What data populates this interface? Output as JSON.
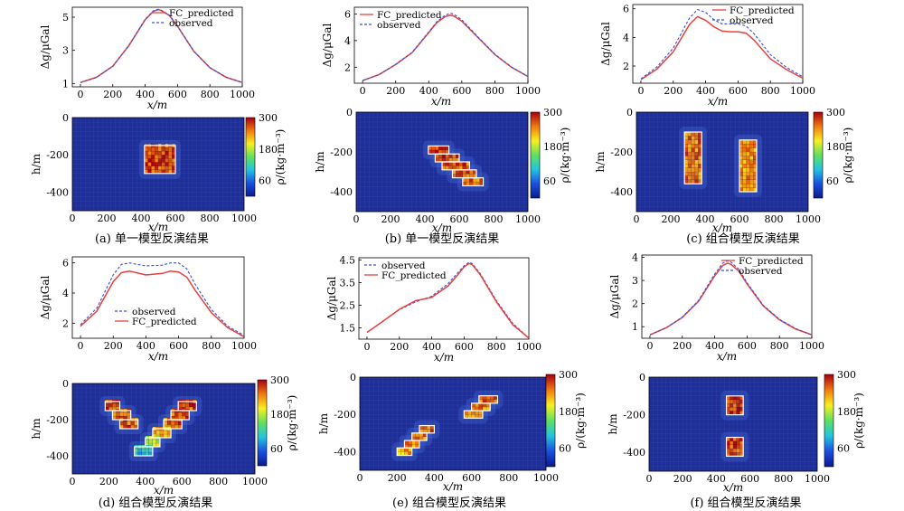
{
  "figure": {
    "units": {
      "x": "x/m",
      "gravity": "Δg/μGal",
      "depth": "h/m",
      "density": "ρ/(kg·m⁻³)"
    },
    "legend_labels": {
      "predicted": "FC_predicted",
      "observed": "observed"
    },
    "colors": {
      "predicted": "#e8413f",
      "observed": "#3a4ed8",
      "background_cell": "#1f2f9a",
      "block_outline": "#ffffff"
    },
    "colorbar": {
      "ticks": [
        "300",
        "180",
        "60"
      ],
      "min": 0,
      "max": 300,
      "stops": [
        "#0a1a8c",
        "#1b4fe0",
        "#22c4e0",
        "#60e060",
        "#f8f020",
        "#f07a10",
        "#a80010"
      ]
    }
  },
  "chart_data": [
    {
      "id": "a",
      "caption": "(a) 单一模型反演结果",
      "line": {
        "type": "line",
        "x": [
          0,
          100,
          200,
          300,
          400,
          450,
          480,
          500,
          550,
          600,
          700,
          800,
          900,
          1000
        ],
        "series": [
          {
            "name": "FC_predicted",
            "values": [
              1.06,
              1.38,
              2.05,
              3.3,
              4.85,
              5.35,
              5.45,
              5.4,
              5.1,
              4.45,
              2.95,
              1.95,
              1.38,
              1.06
            ]
          },
          {
            "name": "observed",
            "values": [
              1.05,
              1.37,
              2.04,
              3.31,
              4.87,
              5.38,
              5.48,
              5.42,
              5.12,
              4.47,
              2.96,
              1.96,
              1.38,
              1.05
            ]
          }
        ],
        "xlim": [
          -50,
          1000
        ],
        "ylim": [
          0.8,
          5.6
        ],
        "xticks": [
          0,
          200,
          400,
          600,
          800,
          1000
        ],
        "yticks": [
          1,
          3,
          5
        ],
        "xlabel": "x/m",
        "ylabel": "Δg/μGal",
        "legend_order": [
          "FC_predicted",
          "observed"
        ],
        "legend_pos": "top-right"
      },
      "section": {
        "type": "heatmap",
        "xlim": [
          0,
          1000
        ],
        "ylim": [
          -500,
          0
        ],
        "xticks": [
          0,
          200,
          400,
          600,
          800,
          1000
        ],
        "yticks": [
          0,
          -200,
          -400
        ],
        "xlabel": "x/m",
        "ylabel": "h/m",
        "colorbar_label": "ρ/(kg·m⁻³)",
        "blocks": [
          {
            "x": [
              420,
              600
            ],
            "y": [
              -300,
              -150
            ],
            "value": 270
          }
        ]
      }
    },
    {
      "id": "b",
      "caption": "(b) 单一模型反演结果",
      "line": {
        "type": "line",
        "x": [
          0,
          100,
          200,
          300,
          400,
          450,
          500,
          530,
          550,
          600,
          700,
          800,
          900,
          1000
        ],
        "series": [
          {
            "name": "FC_predicted",
            "values": [
              1.0,
              1.45,
              2.2,
              3.1,
              4.6,
              5.35,
              5.8,
              5.9,
              5.85,
              5.45,
              4.2,
              2.95,
              2.0,
              1.3
            ]
          },
          {
            "name": "observed",
            "values": [
              1.0,
              1.45,
              2.22,
              3.12,
              4.65,
              5.42,
              5.9,
              6.05,
              6.0,
              5.55,
              4.25,
              2.98,
              2.02,
              1.3
            ]
          }
        ],
        "xlim": [
          -50,
          1000
        ],
        "ylim": [
          0.8,
          6.5
        ],
        "xticks": [
          0,
          200,
          400,
          600,
          800,
          1000
        ],
        "yticks": [
          2,
          4,
          6
        ],
        "xlabel": "x/m",
        "ylabel": "Δg/μGal",
        "legend_order": [
          "FC_predicted",
          "observed"
        ],
        "legend_pos": "top-left"
      },
      "section": {
        "type": "heatmap",
        "xlim": [
          0,
          1000
        ],
        "ylim": [
          -500,
          0
        ],
        "xticks": [
          0,
          200,
          400,
          600,
          800,
          1000
        ],
        "yticks": [
          0,
          -200,
          -400
        ],
        "xlabel": "x/m",
        "ylabel": "h/m",
        "colorbar_label": "ρ/(kg·m⁻³)",
        "blocks": [
          {
            "x": [
              420,
              540
            ],
            "y": [
              -210,
              -170
            ],
            "value": 270
          },
          {
            "x": [
              460,
              600
            ],
            "y": [
              -250,
              -210
            ],
            "value": 270
          },
          {
            "x": [
              500,
              660
            ],
            "y": [
              -290,
              -250
            ],
            "value": 265
          },
          {
            "x": [
              560,
              700
            ],
            "y": [
              -330,
              -290
            ],
            "value": 260
          },
          {
            "x": [
              620,
              740
            ],
            "y": [
              -370,
              -330
            ],
            "value": 255
          }
        ]
      }
    },
    {
      "id": "c",
      "caption": "(c) 组合模型反演结果",
      "line": {
        "type": "line",
        "x": [
          0,
          100,
          200,
          300,
          350,
          400,
          450,
          500,
          550,
          600,
          650,
          700,
          800,
          900,
          1000
        ],
        "series": [
          {
            "name": "FC_predicted",
            "values": [
              1.05,
              1.8,
              3.0,
              4.9,
              5.45,
              5.2,
              4.75,
              4.45,
              4.4,
              4.4,
              4.3,
              3.8,
              2.5,
              1.75,
              1.15
            ]
          },
          {
            "name": "observed",
            "values": [
              1.1,
              1.95,
              3.25,
              5.35,
              5.95,
              5.75,
              5.25,
              4.95,
              4.95,
              4.95,
              4.8,
              4.25,
              2.8,
              1.9,
              1.25
            ]
          }
        ],
        "xlim": [
          -50,
          1000
        ],
        "ylim": [
          0.8,
          6.3
        ],
        "xticks": [
          0,
          200,
          400,
          600,
          800,
          1000
        ],
        "yticks": [
          2,
          4,
          6
        ],
        "xlabel": "x/m",
        "ylabel": "Δg/μGal",
        "legend_order": [
          "FC_predicted",
          "observed"
        ],
        "legend_pos": "top-right"
      },
      "section": {
        "type": "heatmap",
        "xlim": [
          0,
          1000
        ],
        "ylim": [
          -500,
          0
        ],
        "xticks": [
          0,
          200,
          400,
          600,
          800,
          1000
        ],
        "yticks": [
          0,
          -200,
          -400
        ],
        "xlabel": "x/m",
        "ylabel": "h/m",
        "colorbar_label": "ρ/(kg·m⁻³)",
        "blocks": [
          {
            "x": [
              280,
              380
            ],
            "y": [
              -360,
              -100
            ],
            "value": 255
          },
          {
            "x": [
              600,
              700
            ],
            "y": [
              -400,
              -140
            ],
            "value": 240
          }
        ]
      }
    },
    {
      "id": "d",
      "caption": "(d) 组合模型反演结果",
      "line": {
        "type": "line",
        "x": [
          0,
          100,
          200,
          250,
          300,
          400,
          500,
          550,
          600,
          650,
          700,
          800,
          900,
          1000
        ],
        "series": [
          {
            "name": "observed",
            "values": [
              1.9,
              3.0,
              5.2,
              5.9,
              6.0,
              5.8,
              5.85,
              6.0,
              6.0,
              5.6,
              4.6,
              2.9,
              1.8,
              1.2
            ]
          },
          {
            "name": "FC_predicted",
            "values": [
              1.8,
              2.8,
              4.75,
              5.35,
              5.45,
              5.2,
              5.3,
              5.45,
              5.4,
              5.05,
              4.2,
              2.7,
              1.7,
              1.1
            ]
          }
        ],
        "xlim": [
          -50,
          1000
        ],
        "ylim": [
          1.0,
          6.4
        ],
        "xticks": [
          0,
          200,
          400,
          600,
          800,
          1000
        ],
        "yticks": [
          2,
          4,
          6
        ],
        "xlabel": "x/m",
        "ylabel": "Δg/μGal",
        "legend_order": [
          "observed",
          "FC_predicted"
        ],
        "legend_pos": "bottom-center"
      },
      "section": {
        "type": "heatmap",
        "xlim": [
          0,
          1000
        ],
        "ylim": [
          -500,
          0
        ],
        "xticks": [
          0,
          200,
          400,
          600,
          800,
          1000
        ],
        "yticks": [
          0,
          -200,
          -400
        ],
        "xlabel": "x/m",
        "ylabel": "h/m",
        "colorbar_label": "ρ/(kg·m⁻³)",
        "blocks": [
          {
            "x": [
              180,
              260
            ],
            "y": [
              -150,
              -100
            ],
            "value": 270
          },
          {
            "x": [
              220,
              320
            ],
            "y": [
              -200,
              -150
            ],
            "value": 265
          },
          {
            "x": [
              260,
              360
            ],
            "y": [
              -250,
              -200
            ],
            "value": 260
          },
          {
            "x": [
              580,
              680
            ],
            "y": [
              -150,
              -100
            ],
            "value": 270
          },
          {
            "x": [
              540,
              640
            ],
            "y": [
              -200,
              -150
            ],
            "value": 265
          },
          {
            "x": [
              500,
              600
            ],
            "y": [
              -250,
              -200
            ],
            "value": 260
          },
          {
            "x": [
              440,
              540
            ],
            "y": [
              -300,
              -250
            ],
            "value": 230
          },
          {
            "x": [
              400,
              480
            ],
            "y": [
              -350,
              -300
            ],
            "value": 180
          },
          {
            "x": [
              340,
              440
            ],
            "y": [
              -400,
              -350
            ],
            "value": 110
          }
        ]
      }
    },
    {
      "id": "e",
      "caption": "(e) 组合模型反演结果",
      "line": {
        "type": "line",
        "x": [
          0,
          100,
          200,
          300,
          400,
          500,
          550,
          600,
          630,
          650,
          700,
          800,
          900,
          1000
        ],
        "series": [
          {
            "name": "observed",
            "values": [
              1.3,
              1.8,
              2.3,
              2.65,
              2.9,
              3.45,
              3.85,
              4.25,
              4.4,
              4.35,
              3.9,
              2.7,
              1.7,
              1.05
            ]
          },
          {
            "name": "FC_predicted",
            "values": [
              1.3,
              1.8,
              2.32,
              2.7,
              2.85,
              3.35,
              3.75,
              4.2,
              4.35,
              4.3,
              3.85,
              2.65,
              1.65,
              1.05
            ]
          }
        ],
        "xlim": [
          -50,
          1000
        ],
        "ylim": [
          1.0,
          4.6
        ],
        "xticks": [
          0,
          200,
          400,
          600,
          800,
          1000
        ],
        "yticks": [
          1.5,
          2.5,
          3.5,
          4.5
        ],
        "xlabel": "x/m",
        "ylabel": "Δg/μGal",
        "legend_order": [
          "observed",
          "FC_predicted"
        ],
        "legend_pos": "top-left"
      },
      "section": {
        "type": "heatmap",
        "xlim": [
          0,
          1000
        ],
        "ylim": [
          -500,
          0
        ],
        "xticks": [
          0,
          200,
          400,
          600,
          800,
          1000
        ],
        "yticks": [
          0,
          -200,
          -400
        ],
        "xlabel": "x/m",
        "ylabel": "h/m",
        "colorbar_label": "ρ/(kg·m⁻³)",
        "blocks": [
          {
            "x": [
              640,
              740
            ],
            "y": [
              -140,
              -100
            ],
            "value": 260
          },
          {
            "x": [
              600,
              700
            ],
            "y": [
              -180,
              -140
            ],
            "value": 250
          },
          {
            "x": [
              560,
              660
            ],
            "y": [
              -220,
              -180
            ],
            "value": 240
          },
          {
            "x": [
              320,
              400
            ],
            "y": [
              -300,
              -260
            ],
            "value": 260
          },
          {
            "x": [
              280,
              360
            ],
            "y": [
              -340,
              -300
            ],
            "value": 250
          },
          {
            "x": [
              240,
              320
            ],
            "y": [
              -380,
              -340
            ],
            "value": 240
          },
          {
            "x": [
              200,
              280
            ],
            "y": [
              -420,
              -380
            ],
            "value": 230
          }
        ]
      }
    },
    {
      "id": "f",
      "caption": "(f) 组合模型反演结果",
      "line": {
        "type": "line",
        "x": [
          0,
          100,
          200,
          300,
          400,
          450,
          480,
          500,
          550,
          600,
          700,
          800,
          900,
          1000
        ],
        "series": [
          {
            "name": "FC_predicted",
            "values": [
              0.65,
              0.95,
              1.4,
              2.1,
              3.2,
              3.65,
              3.75,
              3.7,
              3.4,
              2.85,
              1.9,
              1.3,
              0.9,
              0.65
            ]
          },
          {
            "name": "observed",
            "values": [
              0.65,
              0.95,
              1.42,
              2.13,
              3.28,
              3.75,
              3.85,
              3.8,
              3.48,
              2.9,
              1.93,
              1.32,
              0.92,
              0.65
            ]
          }
        ],
        "xlim": [
          -50,
          1000
        ],
        "ylim": [
          0.5,
          4.1
        ],
        "xticks": [
          0,
          200,
          400,
          600,
          800,
          1000
        ],
        "yticks": [
          1,
          2,
          3,
          4
        ],
        "xlabel": "x/m",
        "ylabel": "Δg/μGal",
        "legend_order": [
          "FC_predicted",
          "observed"
        ],
        "legend_pos": "top-right"
      },
      "section": {
        "type": "heatmap",
        "xlim": [
          0,
          1000
        ],
        "ylim": [
          -500,
          0
        ],
        "xticks": [
          0,
          200,
          400,
          600,
          800,
          1000
        ],
        "yticks": [
          0,
          -200,
          -400
        ],
        "xlabel": "x/m",
        "ylabel": "h/m",
        "colorbar_label": "ρ/(kg·m⁻³)",
        "blocks": [
          {
            "x": [
              460,
              560
            ],
            "y": [
              -200,
              -100
            ],
            "value": 280
          },
          {
            "x": [
              460,
              560
            ],
            "y": [
              -420,
              -320
            ],
            "value": 270
          }
        ]
      }
    }
  ]
}
